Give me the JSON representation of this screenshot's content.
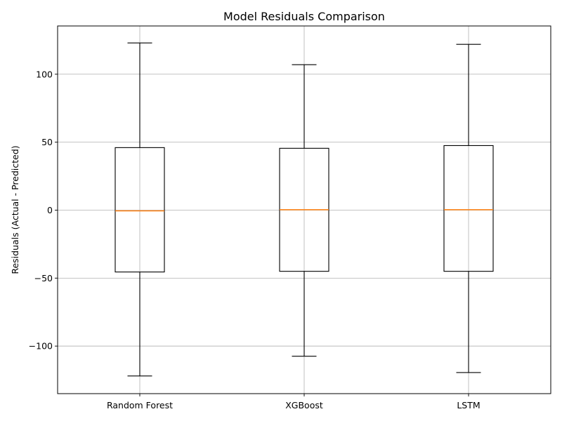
{
  "chart_data": {
    "type": "box",
    "title": "Model Residuals Comparison",
    "xlabel": "",
    "ylabel": "Residuals (Actual - Predicted)",
    "categories": [
      "Random Forest",
      "XGBoost",
      "LSTM"
    ],
    "boxes": [
      {
        "name": "Random Forest",
        "whisker_low": -122,
        "q1": -45.5,
        "median": -0.5,
        "q3": 46,
        "whisker_high": 123
      },
      {
        "name": "XGBoost",
        "whisker_low": -107.5,
        "q1": -45,
        "median": 0.3,
        "q3": 45.5,
        "whisker_high": 107
      },
      {
        "name": "LSTM",
        "whisker_low": -119.5,
        "q1": -45,
        "median": 0.3,
        "q3": 47.5,
        "whisker_high": 122
      }
    ],
    "ylim": [
      -135,
      135.5
    ],
    "yticks": [
      -100,
      -50,
      0,
      50,
      100
    ],
    "ytick_labels": [
      "−100",
      "−50",
      "0",
      "50",
      "100"
    ],
    "grid": true,
    "colors": {
      "median": "#ff7f0e",
      "box": "#000000",
      "grid": "#b0b0b0"
    }
  }
}
